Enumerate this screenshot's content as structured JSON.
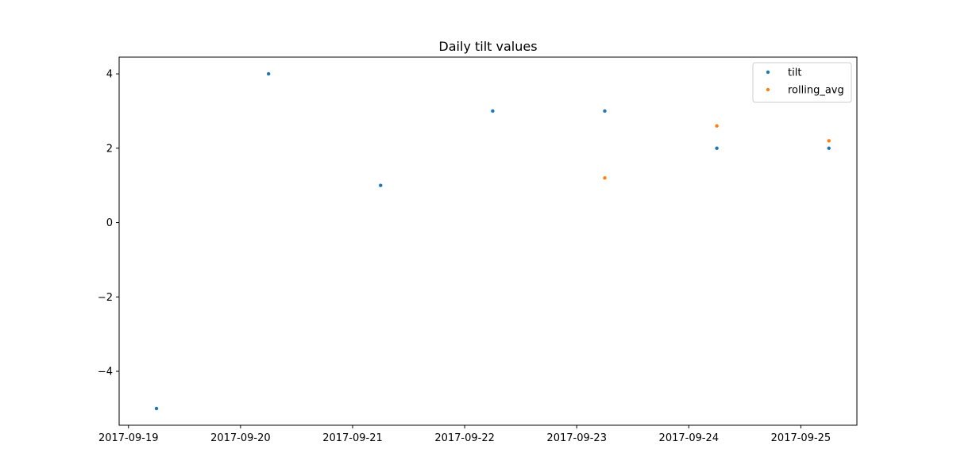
{
  "chart_data": {
    "type": "scatter",
    "title": "Daily tilt values",
    "xlabel": "",
    "ylabel": "",
    "x_tick_labels": [
      "2017-09-19",
      "2017-09-20",
      "2017-09-21",
      "2017-09-22",
      "2017-09-23",
      "2017-09-24",
      "2017-09-25"
    ],
    "y_ticks": [
      -4,
      -2,
      0,
      2,
      4
    ],
    "y_tick_labels": [
      "−4",
      "−2",
      "0",
      "2",
      "4"
    ],
    "xlim": [
      "2017-09-18 22:00",
      "2017-09-25 12:00"
    ],
    "ylim": [
      -5.45,
      4.45
    ],
    "grid": false,
    "legend_position": "top-right",
    "series": [
      {
        "name": "tilt",
        "color": "#1f77b4",
        "points": [
          {
            "x": "2017-09-19 06:00",
            "y": -5
          },
          {
            "x": "2017-09-20 06:00",
            "y": 4
          },
          {
            "x": "2017-09-21 06:00",
            "y": 1
          },
          {
            "x": "2017-09-22 06:00",
            "y": 3
          },
          {
            "x": "2017-09-23 06:00",
            "y": 3
          },
          {
            "x": "2017-09-24 06:00",
            "y": 2
          },
          {
            "x": "2017-09-25 06:00",
            "y": 2
          }
        ]
      },
      {
        "name": "rolling_avg",
        "color": "#ff7f0e",
        "points": [
          {
            "x": "2017-09-23 06:00",
            "y": 1.2
          },
          {
            "x": "2017-09-24 06:00",
            "y": 2.6
          },
          {
            "x": "2017-09-25 06:00",
            "y": 2.2
          }
        ]
      }
    ]
  }
}
